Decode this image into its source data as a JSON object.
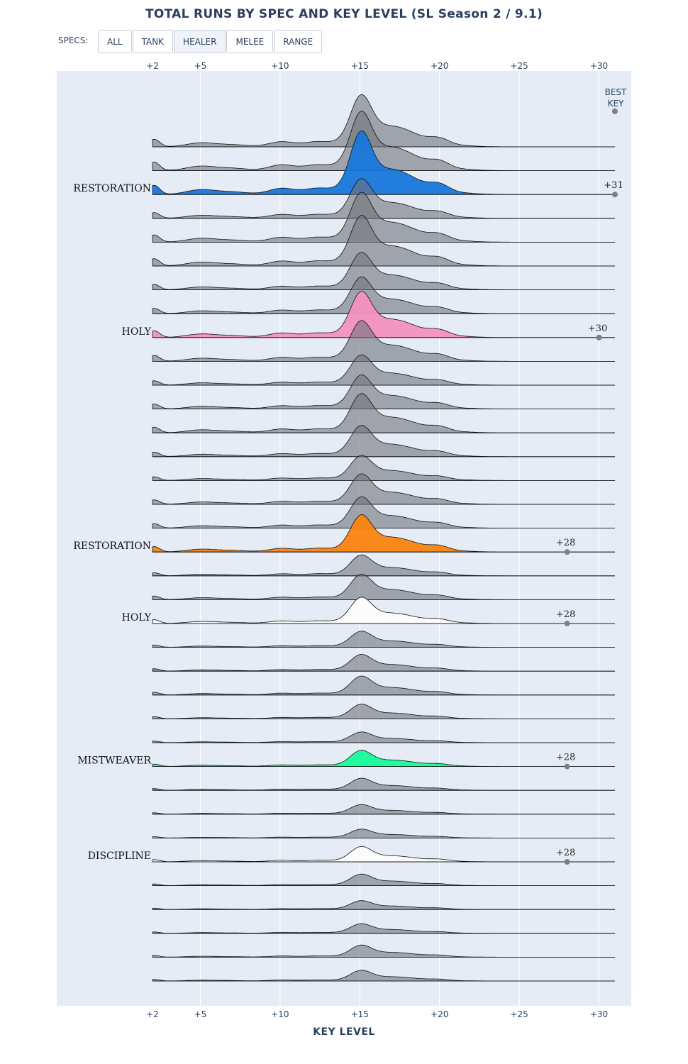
{
  "title": "TOTAL RUNS BY SPEC AND KEY LEVEL (SL Season 2 / 9.1)",
  "specs_label": "SPECS:",
  "spec_buttons": [
    {
      "label": "ALL",
      "active": false
    },
    {
      "label": "TANK",
      "active": false
    },
    {
      "label": "HEALER",
      "active": true
    },
    {
      "label": "MELEE",
      "active": false
    },
    {
      "label": "RANGE",
      "active": false
    }
  ],
  "x_axis_label": "KEY LEVEL",
  "best_key_header": [
    "BEST",
    "KEY"
  ],
  "chart_data": {
    "type": "area",
    "x_ticks": [
      "+2",
      "+5",
      "+10",
      "+15",
      "+20",
      "+25",
      "+30"
    ],
    "xlim": [
      2,
      31
    ],
    "grid": true,
    "rows": 36,
    "series": [
      {
        "row": 2,
        "name": "RESTORATION",
        "color": "#1877db",
        "best_key": "+31",
        "best_value": 31,
        "scale": 1.45
      },
      {
        "row": 8,
        "name": "HOLY",
        "color": "#f391bf",
        "best_key": "+30",
        "best_value": 30,
        "scale": 1.05
      },
      {
        "row": 17,
        "name": "RESTORATION",
        "color": "#fb840f",
        "best_key": "+28",
        "best_value": 28,
        "scale": 0.85
      },
      {
        "row": 20,
        "name": "HOLY",
        "color": "#fdfdfd",
        "best_key": "+28",
        "best_value": 28,
        "scale": 0.6
      },
      {
        "row": 26,
        "name": "MISTWEAVER",
        "color": "#16fd98",
        "best_key": "+28",
        "best_value": 28,
        "scale": 0.37
      },
      {
        "row": 30,
        "name": "DISCIPLINE",
        "color": "#fdfdfd",
        "best_key": "+28",
        "best_value": 28,
        "scale": 0.35
      }
    ],
    "other_rows_color": "#6f7379"
  }
}
